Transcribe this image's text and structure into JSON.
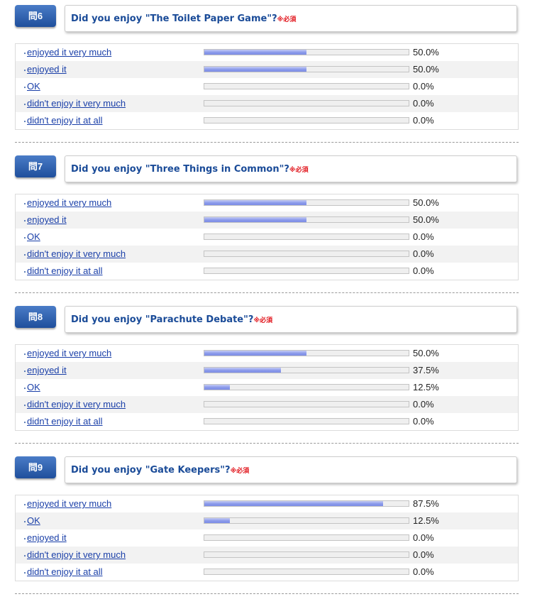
{
  "questions": [
    {
      "badge": "問6",
      "text": "Did you enjoy \"The Toilet Paper Game\"?",
      "required": "※必須",
      "answers": [
        {
          "label": "enjoyed it very much",
          "percent_text": "50.0%",
          "value": 0.5
        },
        {
          "label": "enjoyed it",
          "percent_text": "50.0%",
          "value": 0.5
        },
        {
          "label": "OK",
          "percent_text": "0.0%",
          "value": 0.0
        },
        {
          "label": "didn't enjoy it very much",
          "percent_text": "0.0%",
          "value": 0.0
        },
        {
          "label": "didn't enjoy it at all",
          "percent_text": "0.0%",
          "value": 0.0
        }
      ]
    },
    {
      "badge": "問7",
      "text": "Did you enjoy \"Three Things in Common\"?",
      "required": "※必須",
      "answers": [
        {
          "label": "enjoyed it very much",
          "percent_text": "50.0%",
          "value": 0.5
        },
        {
          "label": "enjoyed it",
          "percent_text": "50.0%",
          "value": 0.5
        },
        {
          "label": "OK",
          "percent_text": "0.0%",
          "value": 0.0
        },
        {
          "label": "didn't enjoy it very much",
          "percent_text": "0.0%",
          "value": 0.0
        },
        {
          "label": "didn't enjoy it at all",
          "percent_text": "0.0%",
          "value": 0.0
        }
      ]
    },
    {
      "badge": "問8",
      "text": "Did you enjoy \"Parachute Debate\"?",
      "required": "※必須",
      "answers": [
        {
          "label": "enjoyed it very much",
          "percent_text": "50.0%",
          "value": 0.5
        },
        {
          "label": "enjoyed it",
          "percent_text": "37.5%",
          "value": 0.375
        },
        {
          "label": "OK",
          "percent_text": "12.5%",
          "value": 0.125
        },
        {
          "label": "didn't enjoy it very much",
          "percent_text": "0.0%",
          "value": 0.0
        },
        {
          "label": "didn't enjoy it at all",
          "percent_text": "0.0%",
          "value": 0.0
        }
      ]
    },
    {
      "badge": "問9",
      "text": "Did you enjoy \"Gate Keepers\"?",
      "required": "※必須",
      "answers": [
        {
          "label": "enjoyed it very much",
          "percent_text": "87.5%",
          "value": 0.875
        },
        {
          "label": "OK",
          "percent_text": "12.5%",
          "value": 0.125
        },
        {
          "label": "enjoyed it",
          "percent_text": "0.0%",
          "value": 0.0
        },
        {
          "label": "didn't enjoy it very much",
          "percent_text": "0.0%",
          "value": 0.0
        },
        {
          "label": "didn't enjoy it at all",
          "percent_text": "0.0%",
          "value": 0.0
        }
      ]
    }
  ],
  "colors": {
    "badge": "#2a5aa8",
    "question_text": "#1a4b98",
    "required": "#e1141b",
    "link": "#1a3fa8",
    "bar_fill": "#8a99ea"
  }
}
